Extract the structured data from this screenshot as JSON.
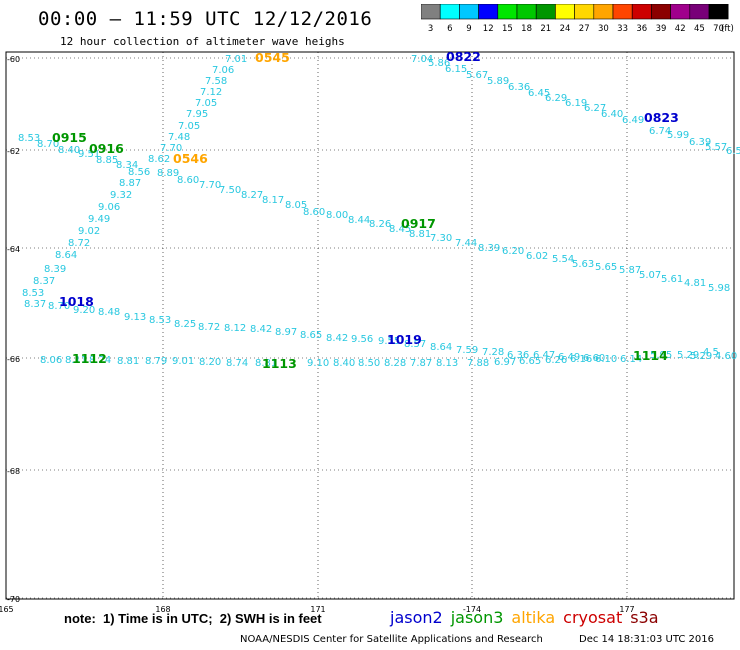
{
  "header": {
    "title": "00:00 – 11:59 UTC 12/12/2016",
    "subtitle": "12 hour collection of altimeter wave heighs"
  },
  "color_scale": {
    "labels": [
      "3",
      "6",
      "9",
      "12",
      "15",
      "18",
      "21",
      "24",
      "27",
      "30",
      "33",
      "36",
      "39",
      "42",
      "45",
      "70"
    ],
    "unit": "(ft)",
    "colors": [
      "#808080",
      "#00ffff",
      "#00c8ff",
      "#0000ff",
      "#00e600",
      "#00c800",
      "#009600",
      "#ffff00",
      "#ffd700",
      "#ffa500",
      "#ff4500",
      "#cd0000",
      "#8b0000",
      "#a0008c",
      "#780078",
      "#000000"
    ]
  },
  "axes": {
    "lat_labels": [
      "-60",
      "-62",
      "-64",
      "-66",
      "-68",
      "-70"
    ],
    "lon_labels": [
      "165",
      "168",
      "171",
      "-174",
      "177"
    ]
  },
  "footer": {
    "note": "note:  1) Time is in UTC;  2) SWH is in feet",
    "satellites": [
      {
        "name": "jason2",
        "color": "#0000cd"
      },
      {
        "name": "jason3",
        "color": "#009600"
      },
      {
        "name": "altika",
        "color": "#ffa500"
      },
      {
        "name": "cryosat",
        "color": "#cd0000"
      },
      {
        "name": "s3a",
        "color": "#8b0000"
      }
    ],
    "credit": "NOAA/NESDIS Center for Satellite Applications and Research",
    "timestamp": "Dec 14 18:31:03 UTC 2016"
  },
  "track_times": [
    {
      "text": "0545",
      "color": "#ffa500"
    },
    {
      "text": "0546",
      "color": "#ffa500"
    },
    {
      "text": "0822",
      "color": "#0000cd"
    },
    {
      "text": "0823",
      "color": "#0000cd"
    },
    {
      "text": "0915",
      "color": "#009600"
    },
    {
      "text": "0916",
      "color": "#009600"
    },
    {
      "text": "0917",
      "color": "#009600"
    },
    {
      "text": "1018",
      "color": "#0000cd"
    },
    {
      "text": "1019",
      "color": "#0000cd"
    },
    {
      "text": "1112",
      "color": "#009600"
    },
    {
      "text": "1113",
      "color": "#009600"
    },
    {
      "text": "1114",
      "color": "#009600"
    }
  ],
  "wave_values": {
    "altika_track": [
      "7.01",
      "7.06",
      "7.58",
      "7.12",
      "7.05",
      "7.95",
      "7.05",
      "7.48",
      "7.70",
      "8.62",
      "8.89",
      "8.60",
      "7.70",
      "7.50",
      "8.27",
      "8.17",
      "8.05",
      "8.60",
      "8.00",
      "8.44",
      "8.26",
      "8.45",
      "8.81",
      "7.30",
      "7.44",
      "8.39",
      "6.20",
      "6.02",
      "5.54",
      "5.63",
      "5.65",
      "5.87",
      "5.07",
      "5.61",
      "4.81",
      "5.98"
    ],
    "jason2_track_a": [
      "7.04",
      "5.86",
      "6.15",
      "5.67",
      "5.89",
      "6.36",
      "6.45",
      "6.29",
      "6.19",
      "6.27",
      "6.40",
      "6.49",
      "6.74",
      "5.99",
      "6.39",
      "5.57",
      "6.5"
    ],
    "jason3_track_a": [
      "8.53",
      "8.70",
      "8.40",
      "9.51",
      "8.85",
      "8.34",
      "8.56",
      "8.87",
      "9.32",
      "9.06",
      "9.49",
      "9.02",
      "8.72",
      "8.64",
      "8.39",
      "8.37",
      "8.53",
      "8.37",
      "8.70",
      "9.20",
      "8.48",
      "9.13",
      "8.53",
      "8.25",
      "8.72",
      "8.12",
      "8.42",
      "8.97",
      "8.65",
      "8.42",
      "9.56",
      "9.55",
      "8.57",
      "8.64",
      "7.59",
      "7.28",
      "6.36",
      "6.47",
      "6.49",
      "6.60",
      "5.95",
      "5.29",
      "4.5"
    ],
    "jason3_track_b": [
      "8.06",
      "8.11",
      "8.24",
      "8.81",
      "8.79",
      "9.01",
      "8.20",
      "8.74",
      "8.81",
      "9.10",
      "8.40",
      "8.50",
      "8.28",
      "7.87",
      "8.13",
      "7.88",
      "6.97",
      "6.65",
      "6.26",
      "6.16",
      "6.10",
      "6.14",
      "5.29",
      "4.60"
    ]
  }
}
